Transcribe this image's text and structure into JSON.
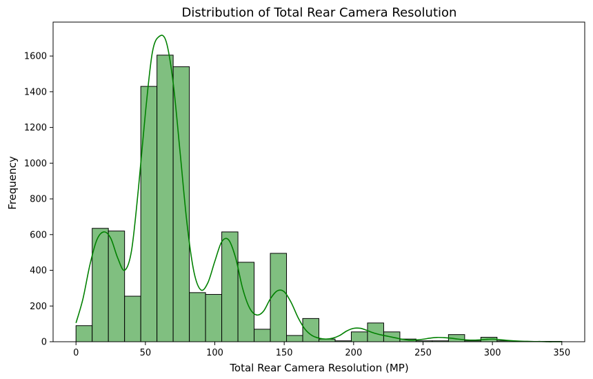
{
  "chart_data": {
    "type": "histogram",
    "title": "Distribution of Total Rear Camera Resolution",
    "xlabel": "Total Rear Camera Resolution (MP)",
    "ylabel": "Frequency",
    "xlim": [
      -16.5,
      366.5
    ],
    "ylim": [
      0,
      1790
    ],
    "x_ticks": [
      0,
      50,
      100,
      150,
      200,
      250,
      300,
      350
    ],
    "y_ticks": [
      0,
      200,
      400,
      600,
      800,
      1000,
      1200,
      1400,
      1600
    ],
    "bin_edges": [
      0,
      11.67,
      23.33,
      35,
      46.67,
      58.33,
      70,
      81.67,
      93.33,
      105,
      116.67,
      128.33,
      140,
      151.67,
      163.33,
      175,
      186.67,
      198.33,
      210,
      221.67,
      233.33,
      245,
      256.67,
      268.33,
      280,
      291.67,
      303.33,
      315,
      326.67,
      338.33,
      350
    ],
    "values": [
      90,
      635,
      620,
      255,
      1430,
      1605,
      1540,
      275,
      265,
      615,
      445,
      70,
      495,
      35,
      130,
      15,
      5,
      55,
      105,
      55,
      15,
      5,
      5,
      40,
      5,
      25,
      5,
      2,
      2,
      2
    ],
    "kde": {
      "x": [
        0,
        5,
        10,
        15,
        20,
        25,
        30,
        35,
        40,
        45,
        50,
        55,
        60,
        65,
        70,
        75,
        80,
        85,
        90,
        95,
        100,
        105,
        110,
        115,
        120,
        125,
        130,
        135,
        140,
        145,
        150,
        155,
        160,
        165,
        170,
        175,
        180,
        185,
        190,
        195,
        200,
        205,
        210,
        215,
        220,
        225,
        230,
        235,
        240,
        245,
        250,
        255,
        260,
        265,
        270,
        275,
        280,
        285,
        290,
        295,
        300,
        305,
        310,
        315,
        320,
        325,
        330,
        335,
        340,
        345,
        350
      ],
      "y": [
        105,
        240,
        430,
        570,
        615,
        580,
        470,
        400,
        510,
        860,
        1280,
        1620,
        1710,
        1680,
        1450,
        1060,
        660,
        390,
        290,
        330,
        450,
        560,
        570,
        470,
        300,
        190,
        150,
        170,
        240,
        285,
        280,
        220,
        135,
        70,
        35,
        20,
        15,
        20,
        35,
        60,
        75,
        75,
        62,
        48,
        38,
        30,
        22,
        14,
        9,
        10,
        14,
        20,
        24,
        23,
        20,
        15,
        11,
        9,
        10,
        13,
        15,
        12,
        8,
        5,
        3,
        2,
        1,
        1,
        0,
        0,
        0
      ]
    },
    "bar_fill": "#80bf80",
    "bar_edge": "#000000",
    "line_color": "#008000",
    "grid": false,
    "legend": "none"
  }
}
